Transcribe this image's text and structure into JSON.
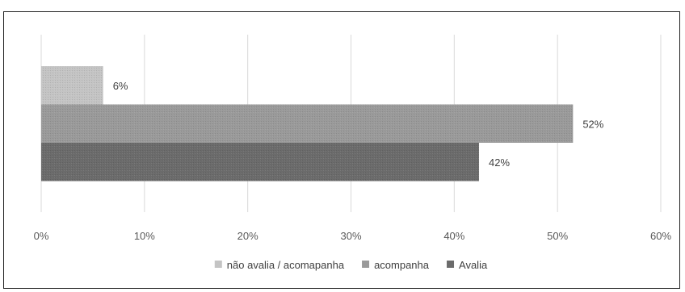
{
  "chart_data": {
    "type": "bar",
    "orientation": "horizontal",
    "title": "",
    "xlabel": "",
    "ylabel": "",
    "xlim": [
      0,
      60
    ],
    "x_ticks": [
      "0%",
      "10%",
      "20%",
      "30%",
      "40%",
      "50%",
      "60%"
    ],
    "grid": true,
    "legend_position": "bottom",
    "series": [
      {
        "name": "não avalia / acomapanha",
        "value": 6,
        "label": "6%",
        "color": "#c4c4c4"
      },
      {
        "name": "acompanha",
        "value": 51.5,
        "label": "52%",
        "color": "#9a9a9a"
      },
      {
        "name": "Avalia",
        "value": 42.4,
        "label": "42%",
        "color": "#6b6b6b"
      }
    ]
  }
}
